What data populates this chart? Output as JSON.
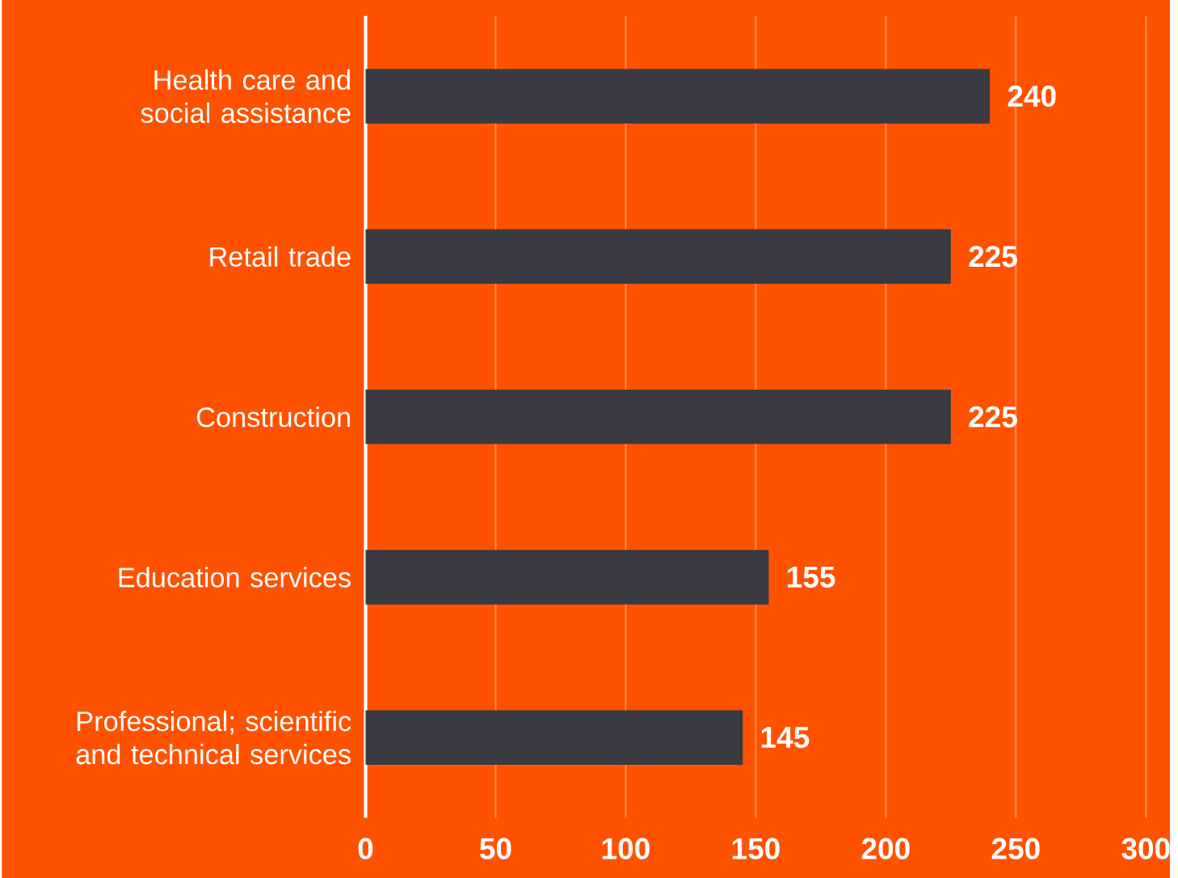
{
  "chart_data": {
    "type": "bar",
    "orientation": "horizontal",
    "categories": [
      "Health care and social assistance",
      "Retail trade",
      "Construction",
      "Education services",
      "Professional; scientific and technical services"
    ],
    "values": [
      240,
      225,
      225,
      155,
      145
    ],
    "color": "#3a3b42",
    "xlim": [
      0,
      300
    ],
    "xticks": [
      0,
      50,
      100,
      150,
      200,
      250,
      300
    ],
    "grid": "x",
    "data_labels": true
  }
}
